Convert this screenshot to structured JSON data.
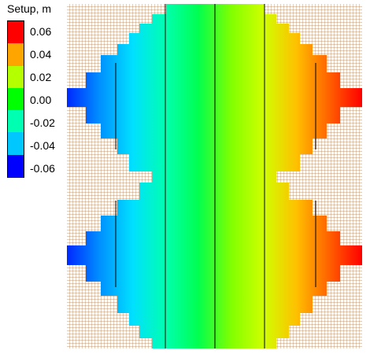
{
  "legend": {
    "title": "Setup, m",
    "labels": [
      "0.06",
      "0.04",
      "0.02",
      "0.00",
      "-0.02",
      "-0.04",
      "-0.06"
    ],
    "colors": [
      "#ff0000",
      "#ffa500",
      "#b4ff00",
      "#00ff00",
      "#00ffb0",
      "#00c8ff",
      "#0000ff"
    ]
  },
  "plot": {
    "grid_color": "#b07848",
    "background": "#ffffff",
    "field_gradient": [
      "#0028ff",
      "#0090ff",
      "#00e0ff",
      "#00ffb0",
      "#00ff50",
      "#80ff00",
      "#d0ff00",
      "#ffc000",
      "#ff6000",
      "#ff0000"
    ]
  }
}
